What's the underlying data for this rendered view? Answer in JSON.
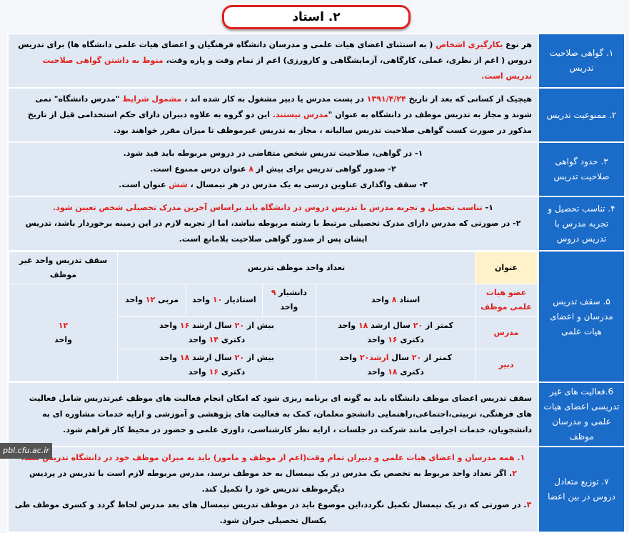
{
  "title": "۲. استاد",
  "rows": [
    {
      "head": "۱. گواهی صلاحیت تدریس",
      "paras": [
        [
          {
            "t": "هر نوع "
          },
          {
            "t": "بکارگیری اشخاص",
            "r": 1
          },
          {
            "t": " ( به استثنای اعضای هیات علمی و مدرسان دانشگاه فرهنگیان و اعضای هیات علمی دانشگاه ها) برای تدریس دروس ( اعم از نظری، عملی، کارگاهی، آزمایشگاهی و کارورزی) اعم از تمام وقت و پاره وقت، "
          },
          {
            "t": "منوط به داشتن گواهی صلاحیت تدریس است.",
            "r": 1
          }
        ]
      ]
    },
    {
      "head": "۲. ممنوعیت تدریس",
      "paras": [
        [
          {
            "t": "هیچیک از کسانی که بعد از تاریخ "
          },
          {
            "t": "۱۳۹۱/۴/۲۴",
            "r": 1
          },
          {
            "t": " در پست مدرس یا دبیر مشغول به کار شده اند ، "
          },
          {
            "t": "مشمول شرایط",
            "r": 1
          },
          {
            "t": " \"مدرس دانشگاه\" نمی شوند و مجاز به تدریس موظف در دانشگاه به عنوان \""
          },
          {
            "t": "مدرس نیستند.",
            "r": 1
          },
          {
            "t": " این دو گروه به علاوه دبیران دارای حکم استخدامی قبل از تاریخ مذکور در صورت کسب گواهی صلاحیت تدریس سالیانه ، مجاز به تدریس غیرموظف تا میزان مقرر خواهند بود."
          }
        ]
      ]
    },
    {
      "head": "۳. حدود گواهی صلاحیت تدریس",
      "center": 1,
      "paras": [
        [
          {
            "t": "۱- در گواهی، صلاحیت تدریس شخص متقاضی در دروس مربوطه باید قید شود."
          }
        ],
        [
          {
            "t": "۲- صدور گواهی تدریس برای بیش از "
          },
          {
            "t": "۸",
            "r": 1
          },
          {
            "t": " عنوان درس ممنوع است."
          }
        ],
        [
          {
            "t": "۳- سقف واگذاری عناوین درسی به یک مدرس در هر نیمسال ، "
          },
          {
            "t": "شش",
            "r": 1
          },
          {
            "t": " عنوان است."
          }
        ]
      ]
    },
    {
      "head": "۴. تناسب تحصیل و تجربه مدرس با تدریس دروس",
      "center": 1,
      "paras": [
        [
          {
            "t": "۱- "
          },
          {
            "t": "تناسب تحصیل و تجربه مدرس با تدریس دروس در دانشگاه باید براساس آخرین مدرک تحصیلی شخص تعیین شود.",
            "r": 1
          }
        ],
        [
          {
            "t": "۲- در صورتی که مدرس دارای مدرک تحصیلی مرتبط با رشته مربوطه نباشد، اما از تجربه لازم در این زمینه برخوردار باشد، تدریس ایشان پس از صدور گواهی صلاحیت بلامانع است."
          }
        ]
      ]
    }
  ],
  "ceiling": {
    "head": "۵. سقف تدریس مدرسان و اعضای هیات علمی",
    "col_title": "عنوان",
    "col_units": "تعداد واحد موظف تدریس",
    "col_max": "سقف تدریس واحد غیر موظف",
    "faculty": {
      "label": "عضو هیات علمی موظف",
      "professor": [
        {
          "t": "استاد "
        },
        {
          "t": "۸",
          "r": 1
        },
        {
          "t": " واحد"
        }
      ],
      "associate": [
        {
          "t": "دانشیار "
        },
        {
          "t": "۹",
          "r": 1
        },
        {
          "t": " واحد"
        }
      ],
      "assistant": [
        {
          "t": "استادیار "
        },
        {
          "t": "۱۰",
          "r": 1
        },
        {
          "t": " واحد"
        }
      ],
      "instructor": [
        {
          "t": "مربی "
        },
        {
          "t": "۱۲",
          "r": 1
        },
        {
          "t": " واحد"
        }
      ]
    },
    "lecturer": {
      "label": "مدرس",
      "a": [
        {
          "t": "کمتر از "
        },
        {
          "t": "۲۰",
          "r": 1
        },
        {
          "t": " سال ارشد "
        },
        {
          "t": "۱۸",
          "r": 1
        },
        {
          "t": " واحد"
        },
        {
          "br": 1
        },
        {
          "t": "دکتری "
        },
        {
          "t": "۱۶",
          "r": 1
        },
        {
          "t": " واحد"
        }
      ],
      "b": [
        {
          "t": "بیش از "
        },
        {
          "t": "۲۰",
          "r": 1
        },
        {
          "t": " سال ارشد "
        },
        {
          "t": "۱۶",
          "r": 1
        },
        {
          "t": " واحد"
        },
        {
          "br": 1
        },
        {
          "t": "دکتری "
        },
        {
          "t": "۱۴",
          "r": 1
        },
        {
          "t": " واحد"
        }
      ]
    },
    "teacher": {
      "label": "دبیر",
      "a": [
        {
          "t": "کمتر از "
        },
        {
          "t": "۲۰",
          "r": 1
        },
        {
          "t": " سال "
        },
        {
          "t": "ارشد۲۰",
          "r": 1
        },
        {
          "t": " واحد"
        },
        {
          "br": 1
        },
        {
          "t": "دکتری "
        },
        {
          "t": "۱۸",
          "r": 1
        },
        {
          "t": " واحد"
        }
      ],
      "b": [
        {
          "t": "بیش از "
        },
        {
          "t": "۲۰",
          "r": 1
        },
        {
          "t": " سال ارشد "
        },
        {
          "t": "۱۸",
          "r": 1
        },
        {
          "t": " واحد"
        },
        {
          "br": 1
        },
        {
          "t": "دکتری "
        },
        {
          "t": "۱۶",
          "r": 1
        },
        {
          "t": " واحد"
        }
      ]
    },
    "max_value": "۱۲",
    "max_unit": "واحد"
  },
  "rows2": [
    {
      "head": "6.فعالیت های غیر تدریسی اعضای هیات علمی و مدرسان موظف",
      "paras": [
        [
          {
            "t": "سقف تدریس اعضای موظف دانشگاه باید به گونه ای برنامه ریزی شود که امکان انجام فعالیت های موظف غیرتدریس شامل فعالیت های فرهنگی، تربیتی،اجتماعی،راهنمایی دانشجو معلمان، کمک به فعالیت های پژوهشی و آموزشی و ارایه خدمات مشاوره ای به دانشجویان، خدمات اجرایی مانند شرکت در جلسات ، ارایه نظر کارشناسی، داوری علمی و حضور در محیط کار فراهم شود."
          }
        ]
      ]
    },
    {
      "head": "۷. توزیع متعادل دروس در بین اعضا",
      "center": 1,
      "paras": [
        [
          {
            "t": "۱. همه مدرسان و اعضای هیات علمی و دبیران تمام وقت(اعم از موظف و مامور) باید به میزان موظف خود در دانشگاه تدریس کنند.",
            "r": 1
          }
        ],
        [
          {
            "t": "۲",
            "r": 1
          },
          {
            "t": ". اگر تعداد واحد مربوط به تخصص یک مدرس در یک نیمسال به حد موظف نرسد، مدرس مربوطه لازم است با تدریس در پردیس دیگرموظف تدریس خود را تکمیل کند."
          }
        ],
        [
          {
            "t": "۳",
            "r": 1
          },
          {
            "t": ". در صورتی که در یک نیمسال تکمیل نگردد،این موضوع باید در موظف تدریس نیمسال های بعد مدرس لحاظ گردد و کسری موظف طی یکسال تحصیلی جبران شود."
          }
        ]
      ]
    }
  ],
  "logo": "pbl.cfu.ac.ir"
}
